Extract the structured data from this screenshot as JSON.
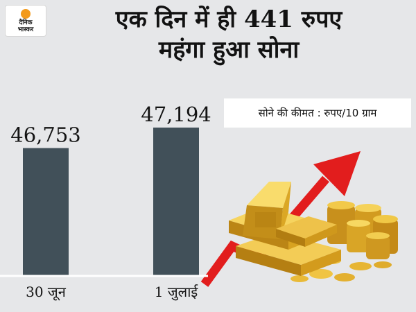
{
  "brand": {
    "line1": "दैनिक",
    "line2": "भास्कर",
    "accent": "#f39a1c"
  },
  "header": {
    "title_line1": "एक दिन में ही 441 रुपए",
    "title_line2": "महंगा हुआ सोना"
  },
  "unit_label": "सोने की कीमत : रुपए/10 ग्राम",
  "colors": {
    "bar": "#415059",
    "arrow": "#e21d1d",
    "gold": "#e0a81c",
    "background": "#e6e7e9"
  },
  "illustration": {
    "icon": "gold-bars-and-coins-icon"
  },
  "chart_data": {
    "type": "bar",
    "categories": [
      "30 जून",
      "1 जुलाई"
    ],
    "values": [
      46753,
      47194
    ],
    "value_labels": [
      "46,753",
      "47,194"
    ],
    "title": "एक दिन में ही 441 रुपए महंगा हुआ सोना",
    "ylabel": "सोने की कीमत : रुपए/10 ग्राम",
    "ylim": [
      44000,
      48000
    ],
    "grid": false,
    "legend": "none"
  }
}
